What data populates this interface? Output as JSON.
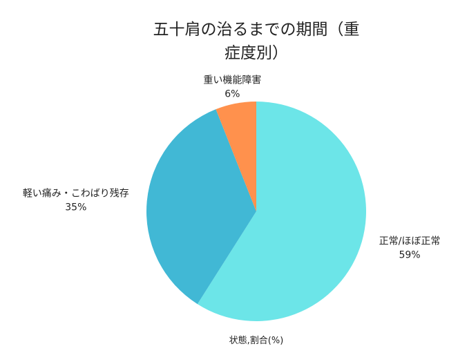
{
  "chart_data": {
    "type": "pie",
    "title_lines": [
      "五十肩の治るまでの期間（重",
      "症度別）"
    ],
    "xlabel": "状態,割合(%)",
    "slices": [
      {
        "label": "正常/ほぼ正常",
        "value": 59,
        "percent_label": "59%",
        "color": "#6ce5e8"
      },
      {
        "label": "軽い痛み・こわばり残存",
        "value": 35,
        "percent_label": "35%",
        "color": "#41b8d5"
      },
      {
        "label": "重い機能障害",
        "value": 6,
        "percent_label": "6%",
        "color": "#ff914d"
      }
    ],
    "start_angle": "12 o'clock",
    "direction": "clockwise",
    "legend": "none"
  }
}
